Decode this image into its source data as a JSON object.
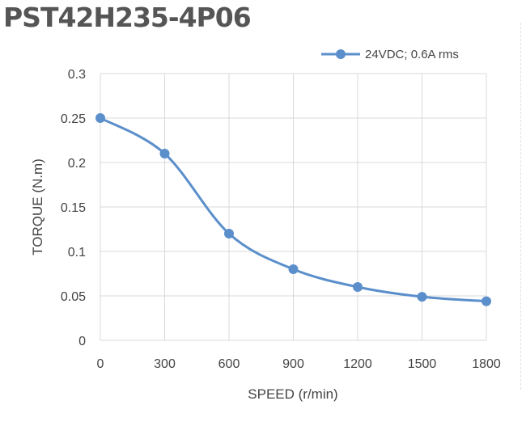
{
  "chart_data": {
    "type": "line",
    "title": "PST42H235-4P06",
    "xlabel": "SPEED (r/min)",
    "ylabel": "TORQUE  (N.m)",
    "xlim": [
      0,
      1800
    ],
    "ylim": [
      0,
      0.3
    ],
    "x_ticks": [
      "0",
      "300",
      "600",
      "900",
      "1200",
      "1500",
      "1800"
    ],
    "y_ticks": [
      "0",
      "0.05",
      "0.1",
      "0.15",
      "0.2",
      "0.25",
      "0.3"
    ],
    "x_tick_values": [
      0,
      300,
      600,
      900,
      1200,
      1500,
      1800
    ],
    "y_tick_values": [
      0,
      0.05,
      0.1,
      0.15,
      0.2,
      0.25,
      0.3
    ],
    "grid": true,
    "legend_position": "top-right",
    "series": [
      {
        "name": "24VDC; 0.6A rms",
        "color": "#5B8FCB",
        "x": [
          0,
          300,
          600,
          900,
          1200,
          1500,
          1800
        ],
        "y": [
          0.25,
          0.21,
          0.12,
          0.08,
          0.06,
          0.049,
          0.044
        ]
      }
    ]
  }
}
